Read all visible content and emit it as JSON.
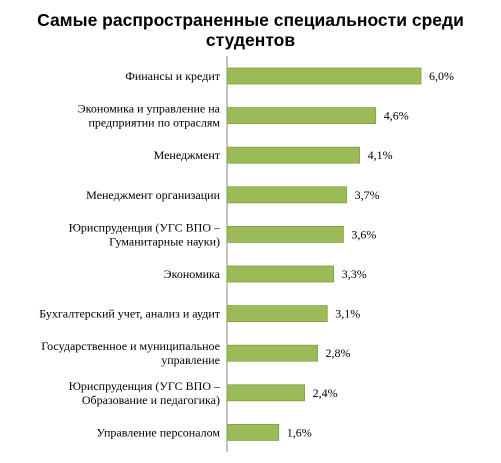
{
  "chart_data": {
    "type": "bar",
    "orientation": "horizontal",
    "title_lines": [
      "Самые распространенные специальности среди",
      "студентов"
    ],
    "categories": [
      [
        "Финансы и кредит"
      ],
      [
        "Экономика и управление на",
        "предприятии по отраслям"
      ],
      [
        "Менеджмент"
      ],
      [
        "Менеджмент организации"
      ],
      [
        "Юриспруденция (УГС ВПО –",
        "Гуманитарные науки)"
      ],
      [
        "Экономика"
      ],
      [
        "Бухгалтерский учет, анализ и аудит"
      ],
      [
        "Государственное и муниципальное",
        "управление"
      ],
      [
        "Юриспруденция (УГС ВПО –",
        "Образование и педагогика)"
      ],
      [
        "Управление персоналом"
      ]
    ],
    "values": [
      6.0,
      4.6,
      4.1,
      3.7,
      3.6,
      3.3,
      3.1,
      2.8,
      2.4,
      1.6
    ],
    "value_labels": [
      "6,0%",
      "4,6%",
      "4,1%",
      "3,7%",
      "3,6%",
      "3,3%",
      "3,1%",
      "2,8%",
      "2,4%",
      "1,6%"
    ],
    "unit": "%",
    "xlim": [
      0,
      6.0
    ],
    "grid": false,
    "bar_color": "#9BBB59",
    "bar_stroke": "#7F9F3F"
  }
}
